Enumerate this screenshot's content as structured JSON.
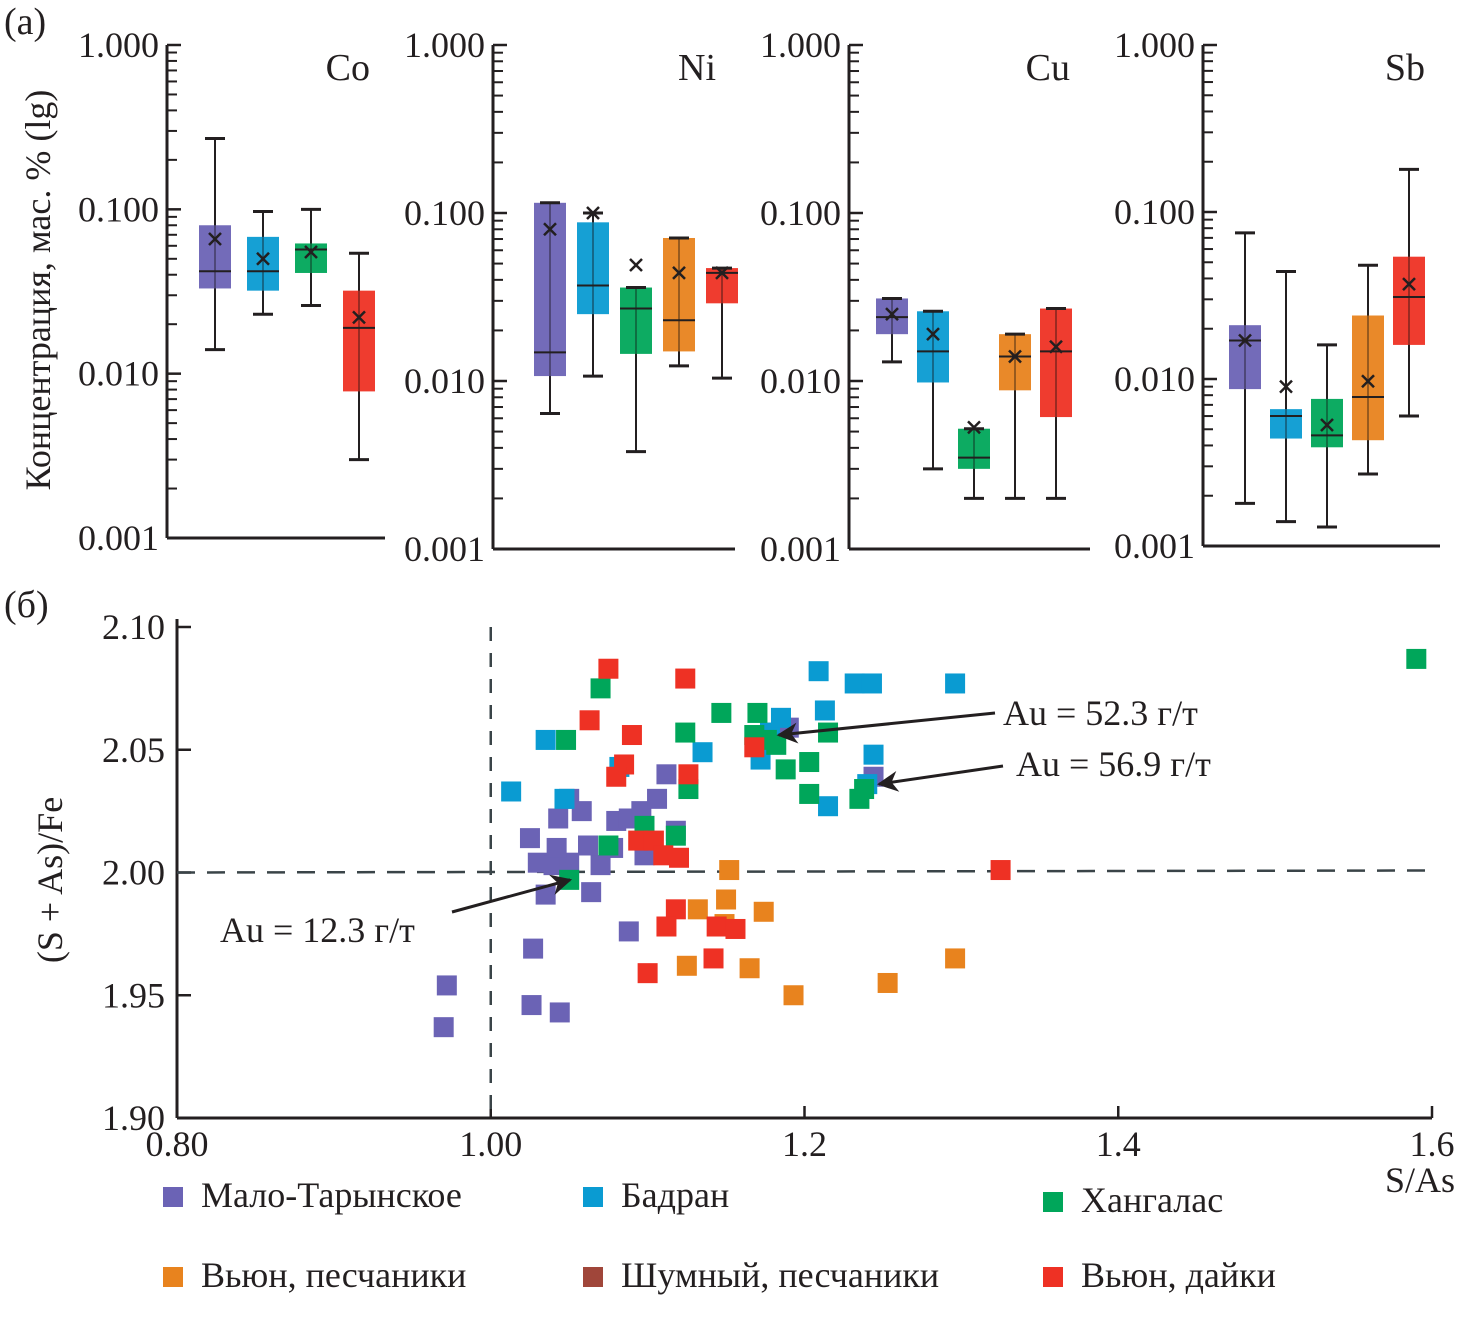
{
  "chart_data": [
    {
      "type": "box",
      "panel_label": "(a)",
      "ylabel": "Концентрация, мас. % (lg)",
      "yscale": "log",
      "ylim": [
        0.001,
        1.0
      ],
      "ytick_labels": [
        "1.000",
        "0.100",
        "0.010",
        "0.001"
      ],
      "yticks": [
        1.0,
        0.1,
        0.01,
        0.001
      ],
      "panels": [
        {
          "title": "Co",
          "boxes": [
            {
              "group": "Мало-Тарынское",
              "color": "#6b63b5",
              "min": 0.014,
              "q1": 0.033,
              "median": 0.042,
              "q3": 0.08,
              "max": 0.27,
              "mean": 0.066
            },
            {
              "group": "Бадран",
              "color": "#0a9bd2",
              "min": 0.023,
              "q1": 0.032,
              "median": 0.042,
              "q3": 0.068,
              "max": 0.097,
              "mean": 0.05
            },
            {
              "group": "Хангалас",
              "color": "#00a65a",
              "min": 0.026,
              "q1": 0.041,
              "median": 0.057,
              "q3": 0.062,
              "max": 0.1,
              "mean": 0.055
            },
            {
              "group": "Вьюн, дайки",
              "color": "#ee3124",
              "min": 0.003,
              "q1": 0.0078,
              "median": 0.019,
              "q3": 0.032,
              "max": 0.054,
              "mean": 0.022
            }
          ]
        },
        {
          "title": "Ni",
          "boxes": [
            {
              "group": "Мало-Тарынское",
              "color": "#6b63b5",
              "min": 0.0064,
              "q1": 0.0107,
              "median": 0.0148,
              "q3": 0.115,
              "max": 0.115,
              "mean": 0.08
            },
            {
              "group": "Бадран",
              "color": "#0a9bd2",
              "min": 0.0107,
              "q1": 0.025,
              "median": 0.037,
              "q3": 0.088,
              "max": 0.1,
              "mean": 0.1
            },
            {
              "group": "Хангалас",
              "color": "#00a65a",
              "min": 0.0038,
              "q1": 0.0145,
              "median": 0.027,
              "q3": 0.036,
              "max": 0.036,
              "mean": 0.049
            },
            {
              "group": "Вьюн, песчаники",
              "color": "#e8831e",
              "min": 0.0123,
              "q1": 0.015,
              "median": 0.023,
              "q3": 0.071,
              "max": 0.071,
              "mean": 0.044
            },
            {
              "group": "Вьюн, дайки",
              "color": "#ee3124",
              "min": 0.0104,
              "q1": 0.029,
              "median": 0.044,
              "q3": 0.047,
              "max": 0.047,
              "mean": 0.044
            }
          ]
        },
        {
          "title": "Cu",
          "boxes": [
            {
              "group": "Мало-Тарынское",
              "color": "#6b63b5",
              "min": 0.013,
              "q1": 0.019,
              "median": 0.024,
              "q3": 0.031,
              "max": 0.031,
              "mean": 0.025
            },
            {
              "group": "Бадран",
              "color": "#0a9bd2",
              "min": 0.003,
              "q1": 0.0098,
              "median": 0.015,
              "q3": 0.026,
              "max": 0.026,
              "mean": 0.019
            },
            {
              "group": "Хангалас",
              "color": "#00a65a",
              "min": 0.002,
              "q1": 0.003,
              "median": 0.0035,
              "q3": 0.0052,
              "max": 0.0052,
              "mean": 0.0053
            },
            {
              "group": "Вьюн, песчаники",
              "color": "#e8831e",
              "min": 0.002,
              "q1": 0.0088,
              "median": 0.014,
              "q3": 0.019,
              "max": 0.019,
              "mean": 0.014
            },
            {
              "group": "Вьюн, дайки",
              "color": "#ee3124",
              "min": 0.002,
              "q1": 0.0061,
              "median": 0.015,
              "q3": 0.027,
              "max": 0.027,
              "mean": 0.016
            }
          ]
        },
        {
          "title": "Sb",
          "boxes": [
            {
              "group": "Мало-Тарынское",
              "color": "#6b63b5",
              "min": 0.0018,
              "q1": 0.0087,
              "median": 0.017,
              "q3": 0.021,
              "max": 0.075,
              "mean": 0.017
            },
            {
              "group": "Бадран",
              "color": "#0a9bd2",
              "min": 0.0014,
              "q1": 0.0044,
              "median": 0.006,
              "q3": 0.0066,
              "max": 0.044,
              "mean": 0.009
            },
            {
              "group": "Хангалас",
              "color": "#00a65a",
              "min": 0.0013,
              "q1": 0.0039,
              "median": 0.0046,
              "q3": 0.0076,
              "max": 0.016,
              "mean": 0.0053
            },
            {
              "group": "Вьюн, песчаники",
              "color": "#e8831e",
              "min": 0.0027,
              "q1": 0.0043,
              "median": 0.0078,
              "q3": 0.024,
              "max": 0.048,
              "mean": 0.0097
            },
            {
              "group": "Вьюн, дайки",
              "color": "#ee3124",
              "min": 0.006,
              "q1": 0.016,
              "median": 0.031,
              "q3": 0.054,
              "max": 0.18,
              "mean": 0.037
            }
          ]
        }
      ]
    },
    {
      "type": "scatter",
      "panel_label": "(б)",
      "xlabel": "S/As",
      "ylabel": "(S + As)/Fe",
      "xlim": [
        0.8,
        1.6
      ],
      "ylim": [
        1.9,
        2.1
      ],
      "xticks": [
        0.8,
        1.0,
        1.2,
        1.4,
        1.6
      ],
      "xtick_labels": [
        "0.80",
        "1.00",
        "1.2",
        "1.4",
        "1.6"
      ],
      "yticks": [
        1.9,
        1.95,
        2.0,
        2.05,
        2.1
      ],
      "ytick_labels": [
        "1.90",
        "1.95",
        "2.00",
        "2.05",
        "2.10"
      ],
      "reference_lines": [
        {
          "axis": "x",
          "value": 1.0,
          "style": "dashed"
        },
        {
          "axis": "y",
          "value": 2.0,
          "style": "dashed"
        }
      ],
      "legend": "bottom",
      "annotations": [
        {
          "text": "Au = 12.3 г/т",
          "point": [
            1.048,
            1.997
          ]
        },
        {
          "text": "Au = 52.3 г/т",
          "point": [
            1.181,
            2.056
          ]
        },
        {
          "text": "Au = 56.9 г/т",
          "point": [
            1.245,
            2.036
          ]
        }
      ],
      "series": [
        {
          "name": "Мало-Тарынское",
          "color": "#6b63b5",
          "points": [
            [
              0.972,
              1.954
            ],
            [
              0.97,
              1.937
            ],
            [
              1.026,
              1.946
            ],
            [
              1.044,
              1.943
            ],
            [
              1.027,
              1.969
            ],
            [
              1.035,
              1.991
            ],
            [
              1.025,
              2.014
            ],
            [
              1.03,
              2.004
            ],
            [
              1.04,
              2.003
            ],
            [
              1.05,
              2.004
            ],
            [
              1.062,
              2.011
            ],
            [
              1.042,
              2.01
            ],
            [
              1.05,
              2.03
            ],
            [
              1.058,
              2.025
            ],
            [
              1.043,
              2.022
            ],
            [
              1.07,
              2.003
            ],
            [
              1.08,
              2.021
            ],
            [
              1.088,
              2.022
            ],
            [
              1.096,
              2.025
            ],
            [
              1.106,
              2.03
            ],
            [
              1.112,
              2.04
            ],
            [
              1.098,
              2.007
            ],
            [
              1.078,
              2.01
            ],
            [
              1.064,
              1.992
            ],
            [
              1.088,
              1.976
            ],
            [
              1.118,
              2.017
            ],
            [
              1.19,
              2.059
            ],
            [
              1.244,
              2.039
            ]
          ]
        },
        {
          "name": "Бадран",
          "color": "#0a9bd2",
          "points": [
            [
              1.013,
              2.033
            ],
            [
              1.035,
              2.054
            ],
            [
              1.047,
              2.03
            ],
            [
              1.082,
              2.043
            ],
            [
              1.135,
              2.049
            ],
            [
              1.172,
              2.046
            ],
            [
              1.178,
              2.057
            ],
            [
              1.209,
              2.082
            ],
            [
              1.213,
              2.066
            ],
            [
              1.232,
              2.077
            ],
            [
              1.243,
              2.077
            ],
            [
              1.296,
              2.077
            ],
            [
              1.215,
              2.027
            ],
            [
              1.244,
              2.048
            ],
            [
              1.24,
              2.036
            ],
            [
              1.185,
              2.063
            ]
          ]
        },
        {
          "name": "Хангалас",
          "color": "#00a65a",
          "points": [
            [
              1.048,
              2.054
            ],
            [
              1.07,
              2.075
            ],
            [
              1.075,
              2.011
            ],
            [
              1.098,
              2.019
            ],
            [
              1.118,
              2.015
            ],
            [
              1.124,
              2.057
            ],
            [
              1.126,
              2.034
            ],
            [
              1.147,
              2.065
            ],
            [
              1.17,
              2.065
            ],
            [
              1.168,
              2.056
            ],
            [
              1.176,
              2.054
            ],
            [
              1.182,
              2.052
            ],
            [
              1.188,
              2.042
            ],
            [
              1.203,
              2.045
            ],
            [
              1.203,
              2.032
            ],
            [
              1.215,
              2.057
            ],
            [
              1.238,
              2.034
            ],
            [
              1.235,
              2.03
            ],
            [
              1.59,
              2.087
            ],
            [
              1.05,
              1.997
            ]
          ]
        },
        {
          "name": "Вьюн, песчаники",
          "color": "#e8831e",
          "points": [
            [
              1.152,
              2.001
            ],
            [
              1.15,
              1.989
            ],
            [
              1.149,
              1.979
            ],
            [
              1.132,
              1.985
            ],
            [
              1.174,
              1.984
            ],
            [
              1.125,
              1.962
            ],
            [
              1.165,
              1.961
            ],
            [
              1.193,
              1.95
            ],
            [
              1.253,
              1.955
            ],
            [
              1.296,
              1.965
            ]
          ]
        },
        {
          "name": "Шумный, песчаники",
          "color": "#a0463a",
          "points": []
        },
        {
          "name": "Вьюн, дайки",
          "color": "#ee3124",
          "points": [
            [
              1.075,
              2.083
            ],
            [
              1.124,
              2.079
            ],
            [
              1.063,
              2.062
            ],
            [
              1.09,
              2.056
            ],
            [
              1.085,
              2.044
            ],
            [
              1.08,
              2.039
            ],
            [
              1.094,
              2.013
            ],
            [
              1.104,
              2.013
            ],
            [
              1.11,
              2.007
            ],
            [
              1.12,
              2.006
            ],
            [
              1.126,
              2.04
            ],
            [
              1.168,
              2.051
            ],
            [
              1.118,
              1.985
            ],
            [
              1.112,
              1.978
            ],
            [
              1.144,
              1.978
            ],
            [
              1.156,
              1.977
            ],
            [
              1.142,
              1.965
            ],
            [
              1.1,
              1.959
            ],
            [
              1.325,
              2.001
            ]
          ]
        }
      ]
    }
  ]
}
